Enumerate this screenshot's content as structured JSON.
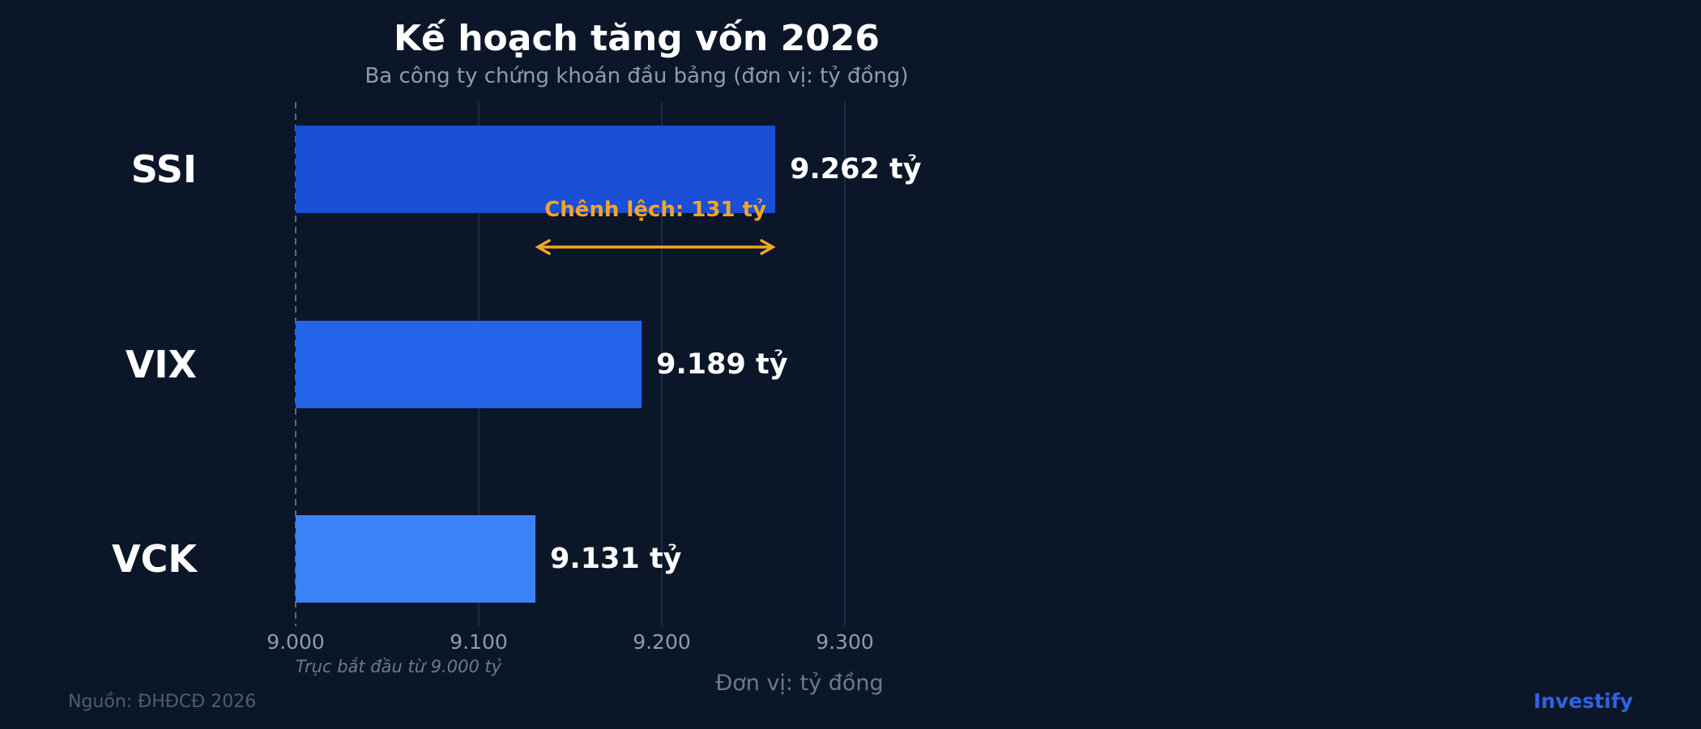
{
  "chart_data": {
    "type": "bar",
    "orientation": "horizontal",
    "title": "Kế hoạch tăng vốn 2026",
    "subtitle": "Ba công ty chứng khoán đầu bảng (đơn vị: tỷ đồng)",
    "categories": [
      "SSI",
      "VIX",
      "VCK"
    ],
    "values": [
      9262,
      9189,
      9131
    ],
    "value_labels": [
      "9.262 tỷ",
      "9.189 tỷ",
      "9.131 tỷ"
    ],
    "bar_colors": [
      "#1a4fd6",
      "#2563eb",
      "#3b82f6"
    ],
    "xlabel": "Đơn vị: tỷ đồng",
    "ylabel": "",
    "xlim": [
      9000,
      9300
    ],
    "x_ticks": [
      9000,
      9100,
      9200,
      9300
    ],
    "x_tick_labels": [
      "9.000",
      "9.100",
      "9.200",
      "9.300"
    ],
    "baseline_note": "Trục bắt đầu từ 9.000 tỷ",
    "grid": true,
    "annotation": {
      "text": "Chênh lệch: 131 tỷ",
      "from": 9131,
      "to": 9262,
      "color": "#f5a623"
    }
  },
  "footer": {
    "source": "Nguồn: ĐHĐCĐ 2026",
    "brand": "Investify"
  },
  "colors": {
    "background": "#0b1628",
    "grid": "#1e3456",
    "text": "#ffffff",
    "muted": "#8e9cb2",
    "accent": "#f5a623",
    "brand": "#2f63e3"
  }
}
